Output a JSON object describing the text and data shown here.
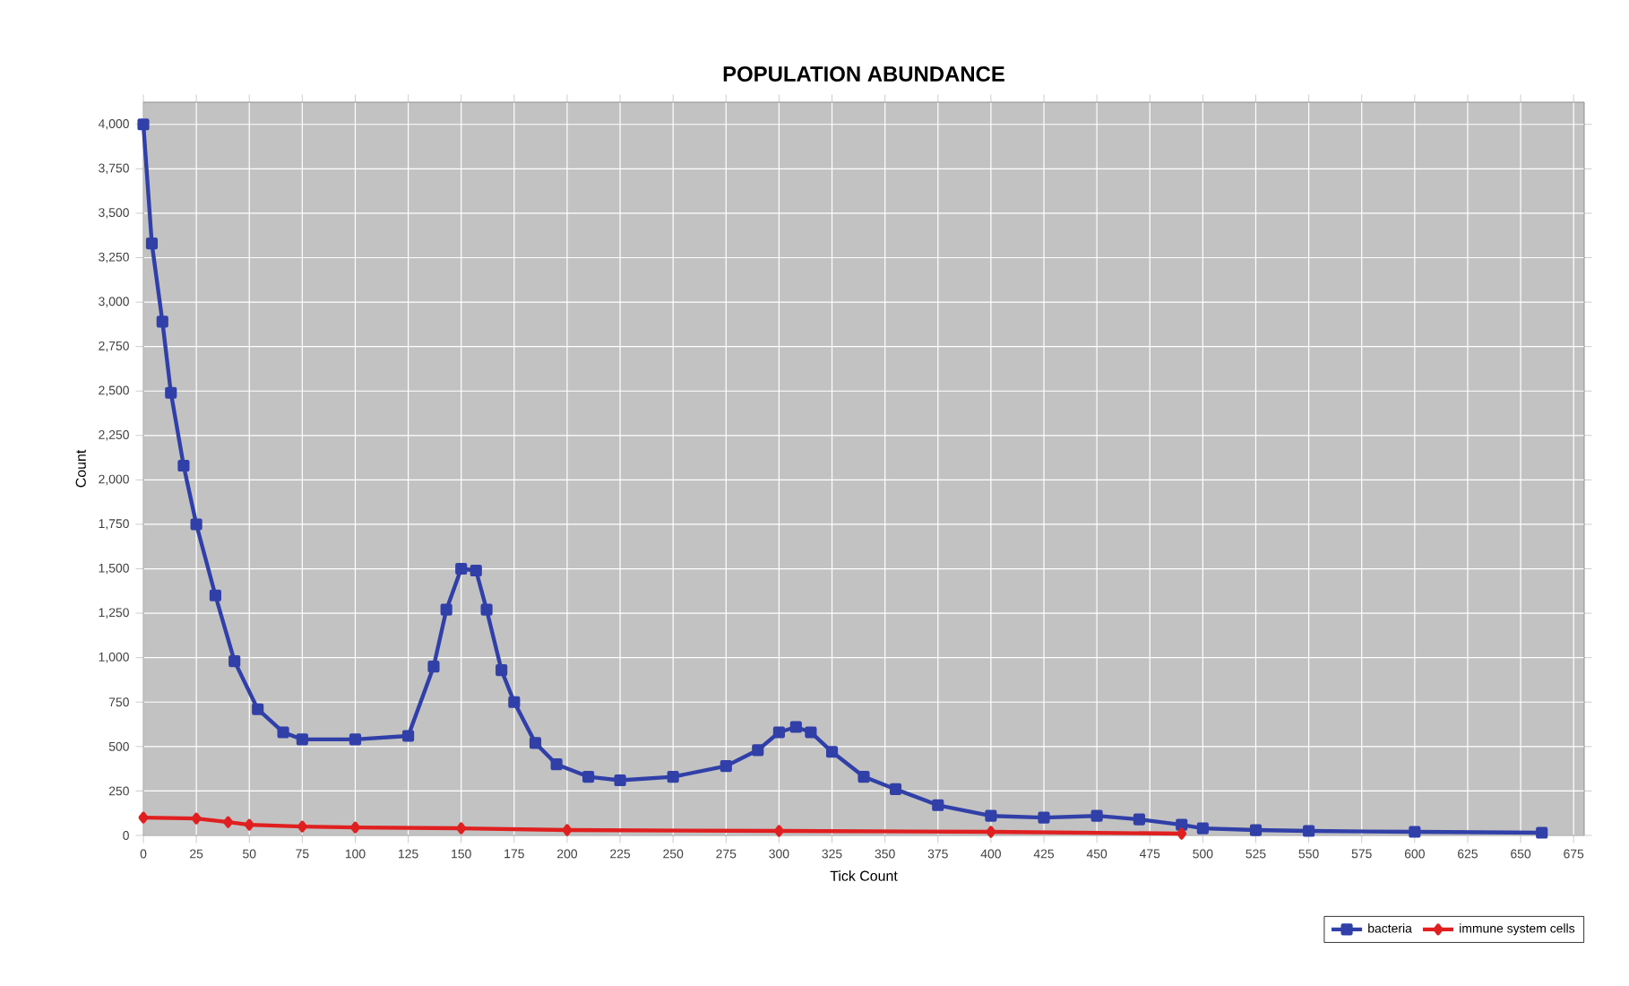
{
  "chart_data": {
    "type": "line",
    "title": "POPULATION ABUNDANCE",
    "xlabel": "Tick Count",
    "ylabel": "Count",
    "xlim": [
      0,
      680
    ],
    "ylim": [
      0,
      4125
    ],
    "xticks": [
      0,
      25,
      50,
      75,
      100,
      125,
      150,
      175,
      200,
      225,
      250,
      275,
      300,
      325,
      350,
      375,
      400,
      425,
      450,
      475,
      500,
      525,
      550,
      575,
      600,
      625,
      650,
      675
    ],
    "yticks": [
      0,
      250,
      500,
      750,
      {
        "value": 1000,
        "label": "1,000"
      },
      {
        "value": 1250,
        "label": "1,250"
      },
      {
        "value": 1500,
        "label": "1,500"
      },
      {
        "value": 1750,
        "label": "1,750"
      },
      {
        "value": 2000,
        "label": "2,000"
      },
      {
        "value": 2250,
        "label": "2,250"
      },
      {
        "value": 2500,
        "label": "2,500"
      },
      {
        "value": 2750,
        "label": "2,750"
      },
      {
        "value": 3000,
        "label": "3,000"
      },
      {
        "value": 3250,
        "label": "3,250"
      },
      {
        "value": 3500,
        "label": "3,500"
      },
      {
        "value": 3750,
        "label": "3,750"
      },
      {
        "value": 4000,
        "label": "4,000"
      }
    ],
    "grid": true,
    "legend": "bottom right",
    "series": [
      {
        "name": "bacteria",
        "color": "#3040a8",
        "marker": "square",
        "x": [
          0,
          4,
          9,
          13,
          19,
          25,
          34,
          43,
          54,
          66,
          75,
          100,
          125,
          137,
          143,
          150,
          157,
          162,
          169,
          175,
          185,
          195,
          210,
          225,
          250,
          275,
          290,
          300,
          308,
          315,
          325,
          340,
          355,
          375,
          400,
          425,
          450,
          470,
          490,
          500,
          525,
          550,
          600,
          660
        ],
        "values": [
          4000,
          3330,
          2890,
          2490,
          2080,
          1750,
          1350,
          980,
          710,
          580,
          540,
          540,
          560,
          950,
          1270,
          1500,
          1490,
          1270,
          930,
          750,
          520,
          400,
          330,
          310,
          330,
          390,
          480,
          580,
          610,
          580,
          470,
          330,
          260,
          170,
          110,
          100,
          110,
          90,
          60,
          40,
          30,
          25,
          20,
          15
        ]
      },
      {
        "name": "immune system cells",
        "color": "#e02020",
        "marker": "diamond",
        "x": [
          0,
          25,
          40,
          50,
          75,
          100,
          150,
          200,
          300,
          400,
          490
        ],
        "values": [
          100,
          95,
          75,
          60,
          50,
          45,
          40,
          30,
          25,
          20,
          10
        ]
      }
    ]
  }
}
